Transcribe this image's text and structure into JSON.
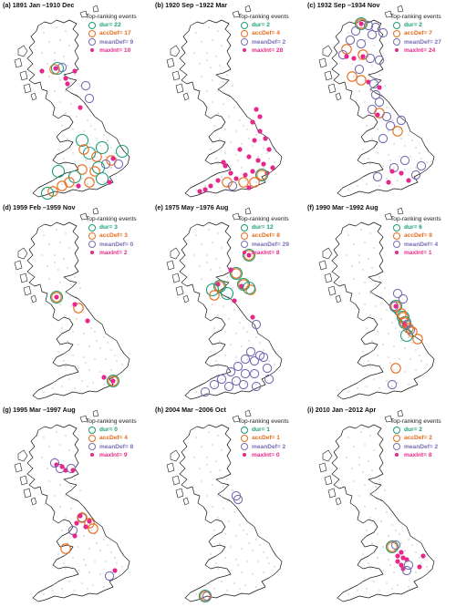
{
  "legend_title": "Top-ranking events",
  "colors": {
    "dur": "#1a9e77",
    "accDef": "#e66c1c",
    "meanDef": "#7670b3",
    "maxInt": "#e5298b",
    "coast": "#1a1a1a",
    "station": "#7a7a7a"
  },
  "legend_symbols": {
    "dur": "ring",
    "accDef": "ring",
    "meanDef": "ring",
    "maxInt": "dot"
  },
  "panels": [
    {
      "title": "(a) 1891 Jan –1910 Dec",
      "legend": [
        {
          "key": "dur",
          "label": "dur= 22"
        },
        {
          "key": "accDef",
          "label": "accDef= 17"
        },
        {
          "key": "meanDef",
          "label": "meanDef= 9"
        },
        {
          "key": "maxInt",
          "label": "maxInt= 10"
        }
      ]
    },
    {
      "title": "(b) 1920 Sep –1922 Mar",
      "legend": [
        {
          "key": "dur",
          "label": "dur= 2"
        },
        {
          "key": "accDef",
          "label": "accDef= 4"
        },
        {
          "key": "meanDef",
          "label": "meanDef= 2"
        },
        {
          "key": "maxInt",
          "label": "maxInt= 28"
        }
      ]
    },
    {
      "title": "(c) 1932 Sep –1934 Nov",
      "legend": [
        {
          "key": "dur",
          "label": "dur= 2"
        },
        {
          "key": "accDef",
          "label": "accDef= 7"
        },
        {
          "key": "meanDef",
          "label": "meanDef= 27"
        },
        {
          "key": "maxInt",
          "label": "maxInt= 24"
        }
      ]
    },
    {
      "title": "(d) 1959 Feb –1959 Nov",
      "legend": [
        {
          "key": "dur",
          "label": "dur= 3"
        },
        {
          "key": "accDef",
          "label": "accDef= 3"
        },
        {
          "key": "meanDef",
          "label": "meanDef= 0"
        },
        {
          "key": "maxInt",
          "label": "maxInt= 2"
        }
      ]
    },
    {
      "title": "(e) 1975 May –1976 Aug",
      "legend": [
        {
          "key": "dur",
          "label": "dur= 12"
        },
        {
          "key": "accDef",
          "label": "accDef= 8"
        },
        {
          "key": "meanDef",
          "label": "meanDef= 29"
        },
        {
          "key": "maxInt",
          "label": "maxInt= 8"
        }
      ]
    },
    {
      "title": "(f) 1990 Mar –1992 Aug",
      "legend": [
        {
          "key": "dur",
          "label": "dur= 6"
        },
        {
          "key": "accDef",
          "label": "accDef= 9"
        },
        {
          "key": "meanDef",
          "label": "meanDef= 4"
        },
        {
          "key": "maxInt",
          "label": "maxInt= 1"
        }
      ]
    },
    {
      "title": "(g) 1995 Mar –1997 Aug",
      "legend": [
        {
          "key": "dur",
          "label": "dur= 0"
        },
        {
          "key": "accDef",
          "label": "accDef= 4"
        },
        {
          "key": "meanDef",
          "label": "meanDef= 8"
        },
        {
          "key": "maxInt",
          "label": "maxInt= 9"
        }
      ]
    },
    {
      "title": "(h) 2004 Mar –2006 Oct",
      "legend": [
        {
          "key": "dur",
          "label": "dur= 1"
        },
        {
          "key": "accDef",
          "label": "accDef= 1"
        },
        {
          "key": "meanDef",
          "label": "meanDef= 2"
        },
        {
          "key": "maxInt",
          "label": "maxInt= 0"
        }
      ]
    },
    {
      "title": "(i) 2010 Jan –2012 Apr",
      "legend": [
        {
          "key": "dur",
          "label": "dur= 2"
        },
        {
          "key": "accDef",
          "label": "accDef= 2"
        },
        {
          "key": "meanDef",
          "label": "meanDef= 2"
        },
        {
          "key": "maxInt",
          "label": "maxInt= 8"
        }
      ]
    }
  ]
}
